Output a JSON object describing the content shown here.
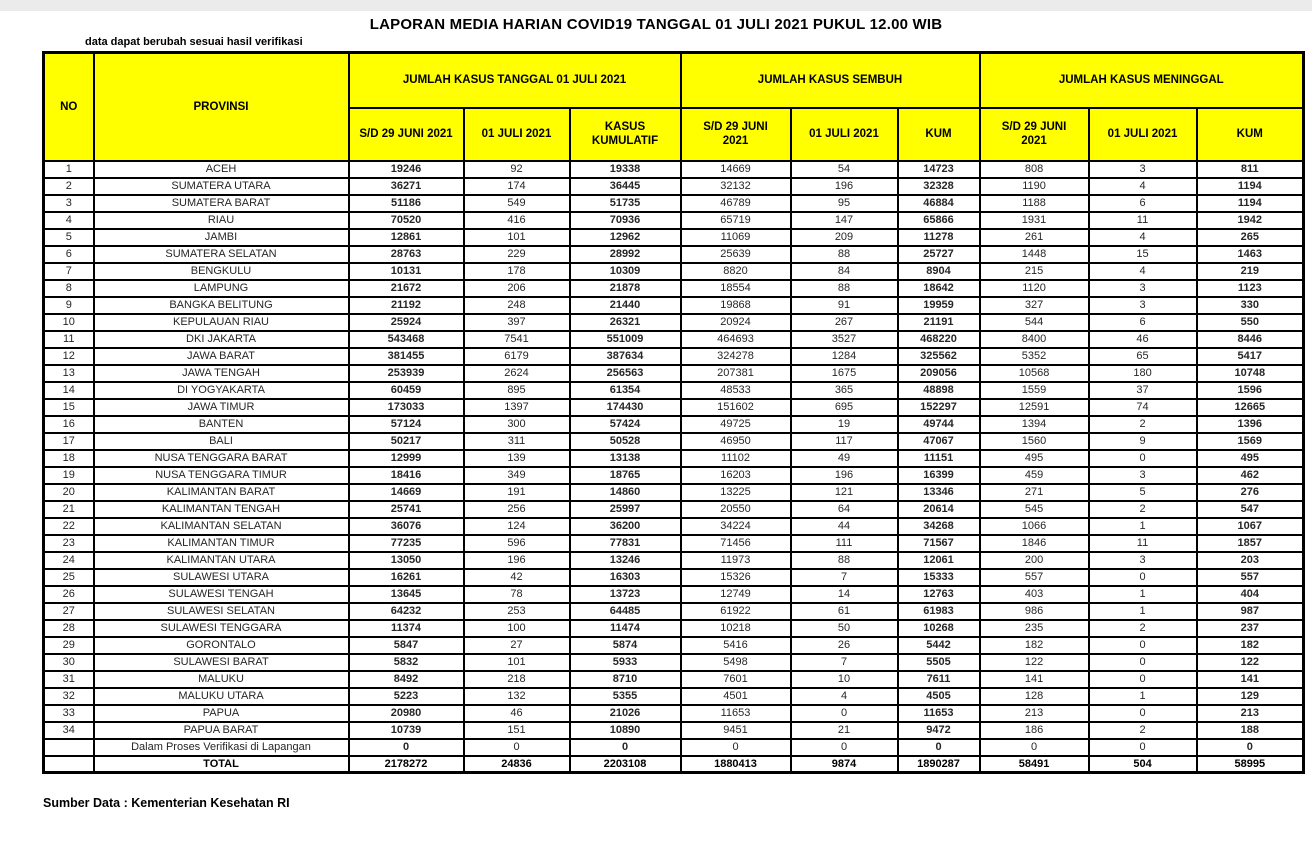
{
  "title": "LAPORAN MEDIA HARIAN COVID19 TANGGAL 01 JULI 2021 PUKUL 12.00 WIB",
  "note": "data dapat berubah sesuai hasil verifikasi",
  "source": "Sumber Data : Kementerian Kesehatan RI",
  "colors": {
    "header_bg": "#ffff00",
    "border": "#000000",
    "muted_value_text": "#595959",
    "top_strip": "#ebebeb"
  },
  "table": {
    "col_no": "NO",
    "col_provinsi": "PROVINSI",
    "groups": [
      {
        "label": "JUMLAH KASUS TANGGAL 01 JULI 2021",
        "sub": [
          "S/D 29 JUNI 2021",
          "01 JULI 2021",
          "KASUS\nKUMULATIF"
        ]
      },
      {
        "label": "JUMLAH KASUS SEMBUH",
        "sub": [
          "S/D 29 JUNI\n2021",
          "01 JULI 2021",
          "KUM"
        ]
      },
      {
        "label": "JUMLAH KASUS MENINGGAL",
        "sub": [
          "S/D 29 JUNI\n2021",
          "01 JULI 2021",
          "KUM"
        ]
      }
    ],
    "rows": [
      {
        "type": "data",
        "no": "1",
        "provinsi": "ACEH",
        "values": [
          19246,
          92,
          19338,
          14669,
          54,
          14723,
          808,
          3,
          811
        ]
      },
      {
        "type": "data",
        "no": "2",
        "provinsi": "SUMATERA UTARA",
        "values": [
          36271,
          174,
          36445,
          32132,
          196,
          32328,
          1190,
          4,
          1194
        ]
      },
      {
        "type": "data",
        "no": "3",
        "provinsi": "SUMATERA BARAT",
        "values": [
          51186,
          549,
          51735,
          46789,
          95,
          46884,
          1188,
          6,
          1194
        ]
      },
      {
        "type": "data",
        "no": "4",
        "provinsi": "RIAU",
        "values": [
          70520,
          416,
          70936,
          65719,
          147,
          65866,
          1931,
          11,
          1942
        ]
      },
      {
        "type": "data",
        "no": "5",
        "provinsi": "JAMBI",
        "values": [
          12861,
          101,
          12962,
          11069,
          209,
          11278,
          261,
          4,
          265
        ]
      },
      {
        "type": "data",
        "no": "6",
        "provinsi": "SUMATERA SELATAN",
        "values": [
          28763,
          229,
          28992,
          25639,
          88,
          25727,
          1448,
          15,
          1463
        ]
      },
      {
        "type": "data",
        "no": "7",
        "provinsi": "BENGKULU",
        "values": [
          10131,
          178,
          10309,
          8820,
          84,
          8904,
          215,
          4,
          219
        ]
      },
      {
        "type": "data",
        "no": "8",
        "provinsi": "LAMPUNG",
        "values": [
          21672,
          206,
          21878,
          18554,
          88,
          18642,
          1120,
          3,
          1123
        ]
      },
      {
        "type": "data",
        "no": "9",
        "provinsi": "BANGKA BELITUNG",
        "values": [
          21192,
          248,
          21440,
          19868,
          91,
          19959,
          327,
          3,
          330
        ]
      },
      {
        "type": "data",
        "no": "10",
        "provinsi": "KEPULAUAN RIAU",
        "values": [
          25924,
          397,
          26321,
          20924,
          267,
          21191,
          544,
          6,
          550
        ]
      },
      {
        "type": "data",
        "no": "11",
        "provinsi": "DKI JAKARTA",
        "values": [
          543468,
          7541,
          551009,
          464693,
          3527,
          468220,
          8400,
          46,
          8446
        ]
      },
      {
        "type": "data",
        "no": "12",
        "provinsi": "JAWA BARAT",
        "values": [
          381455,
          6179,
          387634,
          324278,
          1284,
          325562,
          5352,
          65,
          5417
        ]
      },
      {
        "type": "data",
        "no": "13",
        "provinsi": "JAWA TENGAH",
        "values": [
          253939,
          2624,
          256563,
          207381,
          1675,
          209056,
          10568,
          180,
          10748
        ]
      },
      {
        "type": "data",
        "no": "14",
        "provinsi": "DI YOGYAKARTA",
        "values": [
          60459,
          895,
          61354,
          48533,
          365,
          48898,
          1559,
          37,
          1596
        ]
      },
      {
        "type": "data",
        "no": "15",
        "provinsi": "JAWA TIMUR",
        "values": [
          173033,
          1397,
          174430,
          151602,
          695,
          152297,
          12591,
          74,
          12665
        ]
      },
      {
        "type": "data",
        "no": "16",
        "provinsi": "BANTEN",
        "values": [
          57124,
          300,
          57424,
          49725,
          19,
          49744,
          1394,
          2,
          1396
        ]
      },
      {
        "type": "data",
        "no": "17",
        "provinsi": "BALI",
        "values": [
          50217,
          311,
          50528,
          46950,
          117,
          47067,
          1560,
          9,
          1569
        ]
      },
      {
        "type": "data",
        "no": "18",
        "provinsi": "NUSA TENGGARA BARAT",
        "values": [
          12999,
          139,
          13138,
          11102,
          49,
          11151,
          495,
          0,
          495
        ]
      },
      {
        "type": "data",
        "no": "19",
        "provinsi": "NUSA TENGGARA TIMUR",
        "values": [
          18416,
          349,
          18765,
          16203,
          196,
          16399,
          459,
          3,
          462
        ]
      },
      {
        "type": "data",
        "no": "20",
        "provinsi": "KALIMANTAN BARAT",
        "values": [
          14669,
          191,
          14860,
          13225,
          121,
          13346,
          271,
          5,
          276
        ]
      },
      {
        "type": "data",
        "no": "21",
        "provinsi": "KALIMANTAN TENGAH",
        "values": [
          25741,
          256,
          25997,
          20550,
          64,
          20614,
          545,
          2,
          547
        ]
      },
      {
        "type": "data",
        "no": "22",
        "provinsi": "KALIMANTAN SELATAN",
        "values": [
          36076,
          124,
          36200,
          34224,
          44,
          34268,
          1066,
          1,
          1067
        ]
      },
      {
        "type": "data",
        "no": "23",
        "provinsi": "KALIMANTAN TIMUR",
        "values": [
          77235,
          596,
          77831,
          71456,
          111,
          71567,
          1846,
          11,
          1857
        ]
      },
      {
        "type": "data",
        "no": "24",
        "provinsi": "KALIMANTAN UTARA",
        "values": [
          13050,
          196,
          13246,
          11973,
          88,
          12061,
          200,
          3,
          203
        ]
      },
      {
        "type": "data",
        "no": "25",
        "provinsi": "SULAWESI UTARA",
        "values": [
          16261,
          42,
          16303,
          15326,
          7,
          15333,
          557,
          0,
          557
        ]
      },
      {
        "type": "data",
        "no": "26",
        "provinsi": "SULAWESI TENGAH",
        "values": [
          13645,
          78,
          13723,
          12749,
          14,
          12763,
          403,
          1,
          404
        ]
      },
      {
        "type": "data",
        "no": "27",
        "provinsi": "SULAWESI SELATAN",
        "values": [
          64232,
          253,
          64485,
          61922,
          61,
          61983,
          986,
          1,
          987
        ]
      },
      {
        "type": "data",
        "no": "28",
        "provinsi": "SULAWESI TENGGARA",
        "values": [
          11374,
          100,
          11474,
          10218,
          50,
          10268,
          235,
          2,
          237
        ]
      },
      {
        "type": "data",
        "no": "29",
        "provinsi": "GORONTALO",
        "values": [
          5847,
          27,
          5874,
          5416,
          26,
          5442,
          182,
          0,
          182
        ]
      },
      {
        "type": "data",
        "no": "30",
        "provinsi": "SULAWESI BARAT",
        "values": [
          5832,
          101,
          5933,
          5498,
          7,
          5505,
          122,
          0,
          122
        ]
      },
      {
        "type": "data",
        "no": "31",
        "provinsi": "MALUKU",
        "values": [
          8492,
          218,
          8710,
          7601,
          10,
          7611,
          141,
          0,
          141
        ]
      },
      {
        "type": "data",
        "no": "32",
        "provinsi": "MALUKU UTARA",
        "values": [
          5223,
          132,
          5355,
          4501,
          4,
          4505,
          128,
          1,
          129
        ]
      },
      {
        "type": "data",
        "no": "33",
        "provinsi": "PAPUA",
        "values": [
          20980,
          46,
          21026,
          11653,
          0,
          11653,
          213,
          0,
          213
        ]
      },
      {
        "type": "data",
        "no": "34",
        "provinsi": "PAPUA BARAT",
        "values": [
          10739,
          151,
          10890,
          9451,
          21,
          9472,
          186,
          2,
          188
        ]
      },
      {
        "type": "verification",
        "no": "",
        "provinsi": "Dalam Proses Verifikasi di Lapangan",
        "values": [
          0,
          0,
          0,
          0,
          0,
          0,
          0,
          0,
          0
        ]
      },
      {
        "type": "total",
        "no": "",
        "provinsi": "TOTAL",
        "values": [
          2178272,
          24836,
          2203108,
          1880413,
          9874,
          1890287,
          58491,
          504,
          58995
        ]
      }
    ]
  }
}
